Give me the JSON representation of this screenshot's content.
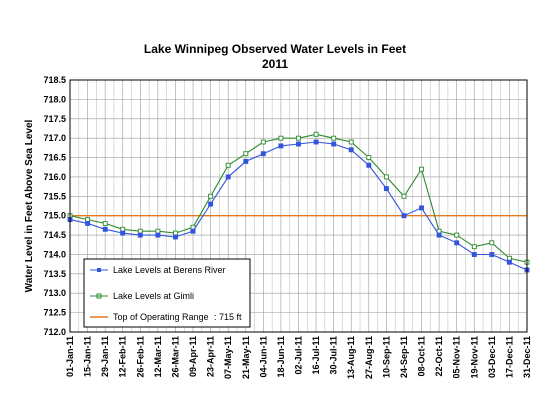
{
  "chart_data": {
    "type": "line",
    "title": "Lake Winnipeg Observed Water Levels in Feet",
    "subtitle": "2011",
    "xlabel": "",
    "ylabel": "Water Level in Feet Above Sea Level",
    "ylim": [
      712.0,
      718.5
    ],
    "yticks": [
      "712.0",
      "712.5",
      "713.0",
      "713.5",
      "714.0",
      "714.5",
      "715.0",
      "715.5",
      "716.0",
      "716.5",
      "717.0",
      "717.5",
      "718.0",
      "718.5"
    ],
    "xlim": [
      "2011-01-01",
      "2011-12-31"
    ],
    "xticks": [
      "01-Jan-11",
      "15-Jan-11",
      "29-Jan-11",
      "12-Feb-11",
      "26-Feb-11",
      "12-Mar-11",
      "26-Mar-11",
      "09-Apr-11",
      "23-Apr-11",
      "07-May-11",
      "21-May-11",
      "04-Jun-11",
      "18-Jun-11",
      "02-Jul-11",
      "16-Jul-11",
      "30-Jul-11",
      "13-Aug-11",
      "27-Aug-11",
      "10-Sep-11",
      "24-Sep-11",
      "08-Oct-11",
      "22-Oct-11",
      "05-Nov-11",
      "19-Nov-11",
      "03-Dec-11",
      "17-Dec-11",
      "31-Dec-11"
    ],
    "grid": true,
    "legend_position": "bottom-left",
    "colors": {
      "berens": "#3355dd",
      "gimli": "#2e8b2e",
      "range": "#e07820",
      "title": "#800080",
      "subtitle": "#0000cc"
    },
    "reference_line": {
      "name": "Top of Operating Range",
      "note": ": 715 ft",
      "value": 715.0
    },
    "series": [
      {
        "name": "Lake Levels at Berens River",
        "x": [
          "2011-01-01",
          "2011-01-15",
          "2011-01-29",
          "2011-02-12",
          "2011-02-26",
          "2011-03-12",
          "2011-03-26",
          "2011-04-09",
          "2011-04-23",
          "2011-05-07",
          "2011-05-21",
          "2011-06-04",
          "2011-06-18",
          "2011-07-02",
          "2011-07-16",
          "2011-07-30",
          "2011-08-13",
          "2011-08-27",
          "2011-09-10",
          "2011-09-24",
          "2011-10-08",
          "2011-10-22",
          "2011-11-05",
          "2011-11-19",
          "2011-12-03",
          "2011-12-17",
          "2011-12-31"
        ],
        "y": [
          714.9,
          714.8,
          714.65,
          714.55,
          714.5,
          714.5,
          714.45,
          714.6,
          715.3,
          716.0,
          716.4,
          716.6,
          716.8,
          716.85,
          716.9,
          716.85,
          716.7,
          716.3,
          715.7,
          715.0,
          715.2,
          714.5,
          714.3,
          714.0,
          714.0,
          713.8,
          713.6
        ]
      },
      {
        "name": "Lake Levels at Gimli",
        "x": [
          "2011-01-01",
          "2011-01-15",
          "2011-01-29",
          "2011-02-12",
          "2011-02-26",
          "2011-03-12",
          "2011-03-26",
          "2011-04-09",
          "2011-04-23",
          "2011-05-07",
          "2011-05-21",
          "2011-06-04",
          "2011-06-18",
          "2011-07-02",
          "2011-07-16",
          "2011-07-30",
          "2011-08-13",
          "2011-08-27",
          "2011-09-10",
          "2011-09-24",
          "2011-10-08",
          "2011-10-22",
          "2011-11-05",
          "2011-11-19",
          "2011-12-03",
          "2011-12-17",
          "2011-12-31"
        ],
        "y": [
          715.0,
          714.9,
          714.8,
          714.65,
          714.6,
          714.6,
          714.55,
          714.7,
          715.5,
          716.3,
          716.6,
          716.9,
          717.0,
          717.0,
          717.1,
          717.0,
          716.9,
          716.5,
          716.0,
          715.5,
          716.2,
          714.6,
          714.5,
          714.2,
          714.3,
          713.9,
          713.8
        ]
      }
    ]
  }
}
